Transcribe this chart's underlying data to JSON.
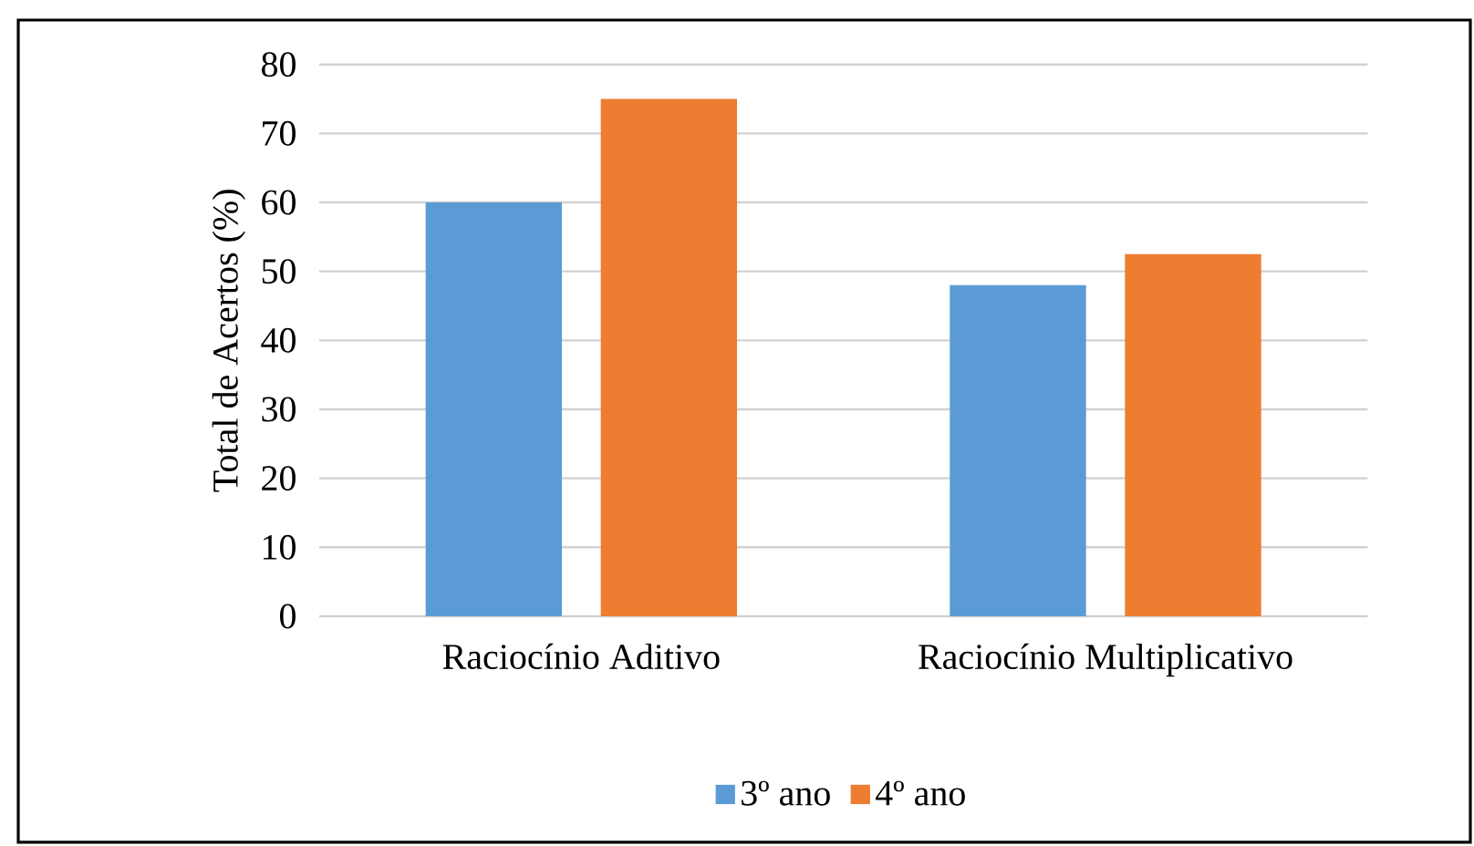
{
  "chart_data": {
    "type": "bar",
    "ylabel": "Total de Acertos (%)",
    "categories": [
      "Raciocínio Aditivo",
      "Raciocínio Multiplicativo"
    ],
    "series": [
      {
        "name": "3º ano",
        "color": "#5b9bd5",
        "values": [
          60,
          48
        ]
      },
      {
        "name": "4º ano",
        "color": "#ed7d31",
        "values": [
          75,
          52.5
        ]
      }
    ],
    "ylim": [
      0,
      80
    ],
    "yticks": [
      0,
      10,
      20,
      30,
      40,
      50,
      60,
      70,
      80
    ],
    "grid": "y",
    "legend": "bottom"
  }
}
